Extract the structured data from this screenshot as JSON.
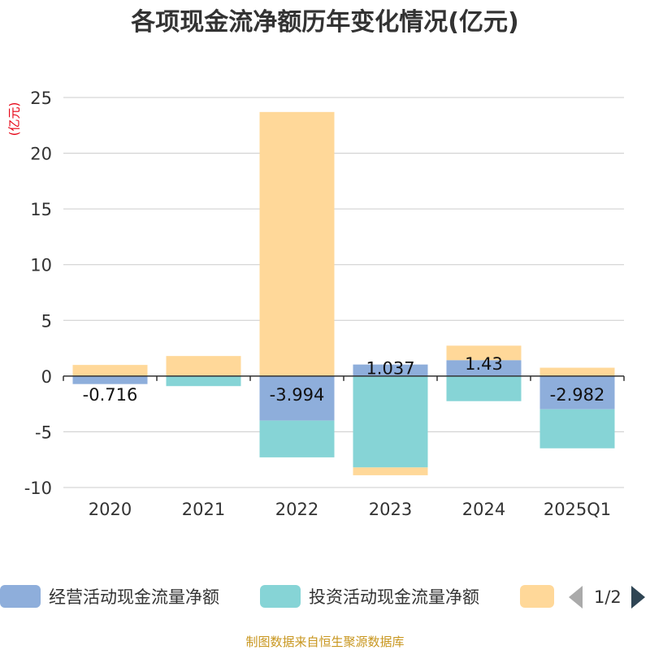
{
  "title": "各项现金流净额历年变化情况(亿元)",
  "unit": "(亿元)",
  "source": "制图数据来自恒生聚源数据库",
  "legend": {
    "items": [
      {
        "label": "经营活动现金流量净额",
        "color": "#8eaedb"
      },
      {
        "label": "投资活动现金流量净额",
        "color": "#86d4d6"
      },
      {
        "label": "",
        "color": "#ffd899"
      }
    ],
    "page": "1/2"
  },
  "chart_data": {
    "type": "bar",
    "stacked": true,
    "categories": [
      "2020",
      "2021",
      "2022",
      "2023",
      "2024",
      "2025Q1"
    ],
    "ylim": [
      -10,
      25
    ],
    "yticks": [
      -10,
      -5,
      0,
      5,
      10,
      15,
      20,
      25
    ],
    "grid": true,
    "legend_position": "bottom",
    "series": [
      {
        "name": "经营活动现金流量净额",
        "color": "#8eaedb",
        "values": [
          -0.716,
          0.05,
          -3.994,
          1.037,
          1.43,
          -2.982
        ],
        "labels": [
          "-0.716",
          "",
          "-3.994",
          "1.037",
          "1.43",
          "-2.982"
        ]
      },
      {
        "name": "投资活动现金流量净额",
        "color": "#86d4d6",
        "values": [
          0.0,
          -0.9,
          -3.3,
          -8.2,
          -2.25,
          -3.5
        ]
      },
      {
        "color": "#ffd899",
        "values": [
          1.0,
          1.75,
          23.7,
          -0.7,
          1.3,
          0.75
        ]
      }
    ]
  }
}
